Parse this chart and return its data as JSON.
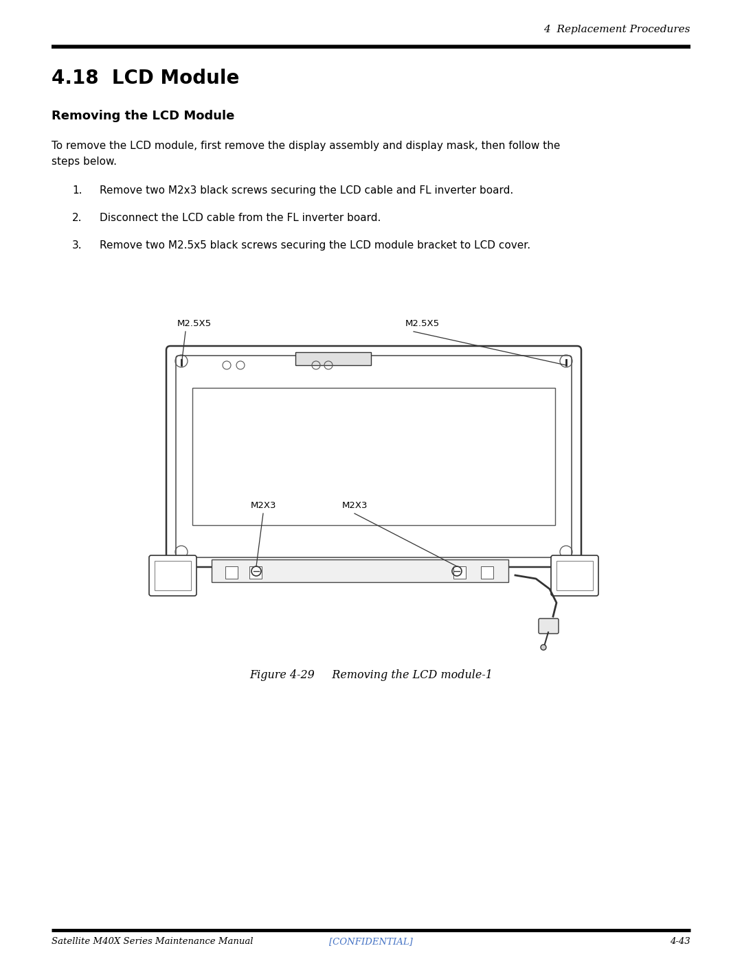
{
  "page_width": 10.8,
  "page_height": 13.97,
  "background_color": "#ffffff",
  "header_text": "4  Replacement Procedures",
  "section_title": "4.18  LCD Module",
  "subsection_title": "Removing the LCD Module",
  "body_text_line1": "To remove the LCD module, first remove the display assembly and display mask, then follow the",
  "body_text_line2": "steps below.",
  "steps": [
    "Remove two M2x3 black screws securing the LCD cable and FL inverter board.",
    "Disconnect the LCD cable from the FL inverter board.",
    "Remove two M2.5x5 black screws securing the LCD module bracket to LCD cover."
  ],
  "figure_caption": "Figure 4-29     Removing the LCD module-1",
  "footer_left": "Satellite M40X Series Maintenance Manual",
  "footer_center": "[CONFIDENTIAL]",
  "footer_right": "4-43",
  "footer_color": "#4472c4"
}
